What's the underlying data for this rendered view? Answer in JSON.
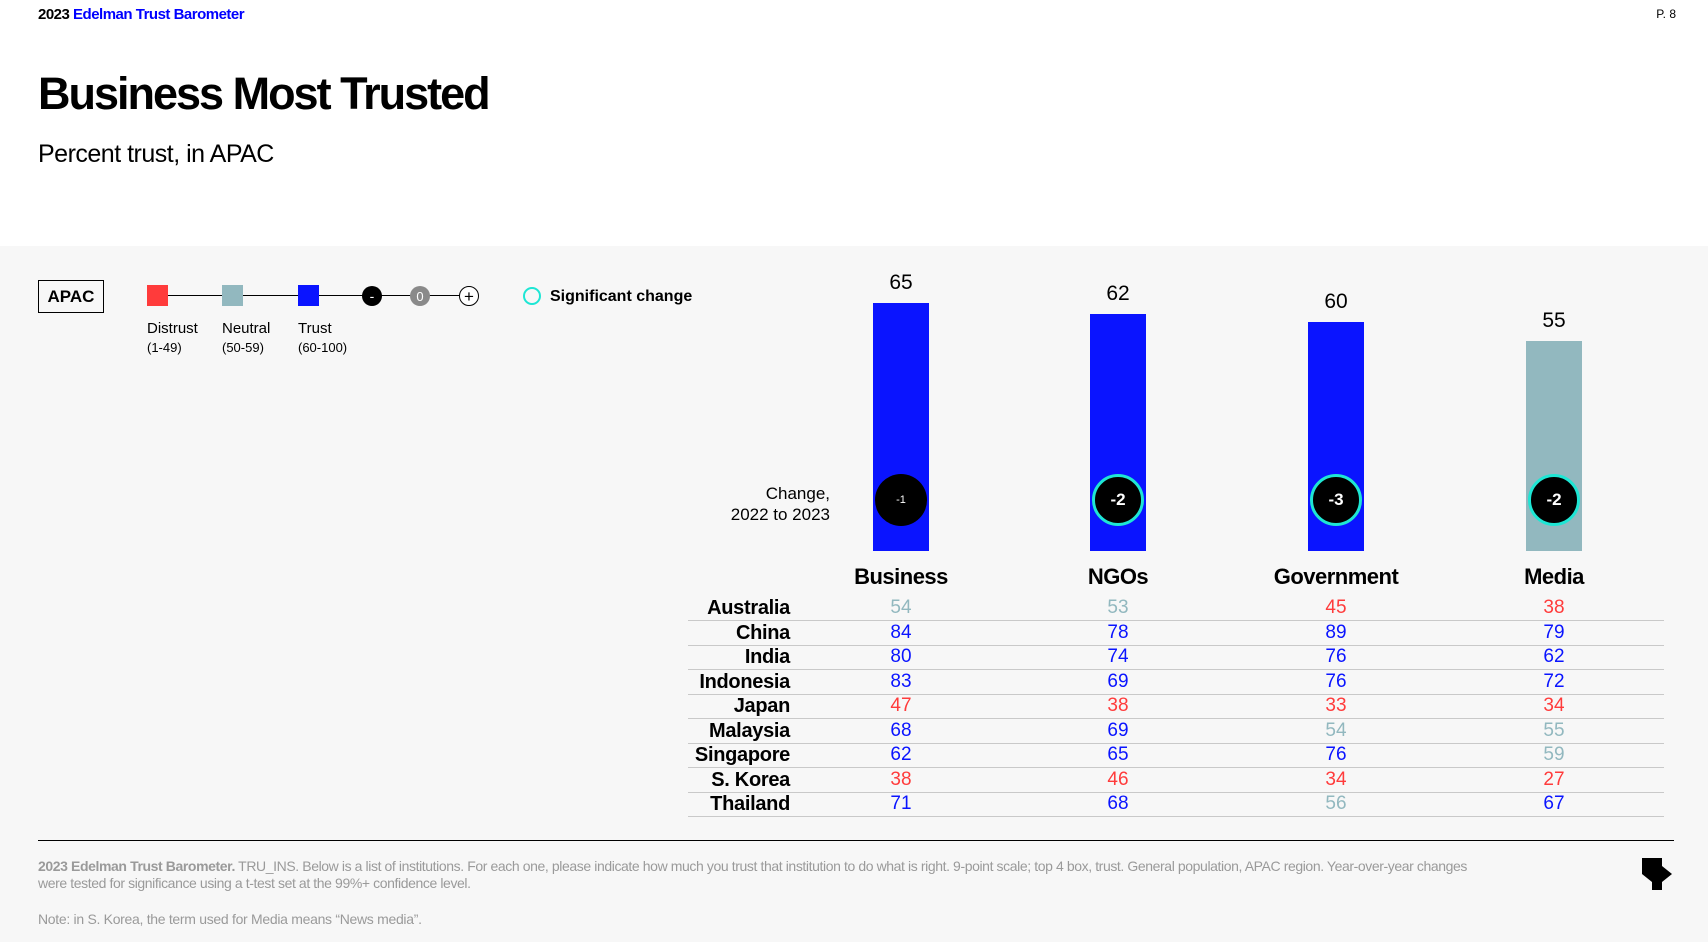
{
  "header": {
    "brand_year": "2023",
    "brand_name": "Edelman Trust Barometer",
    "page_number": "P. 8",
    "title": "Business Most Trusted",
    "subtitle": "Percent trust, in APAC"
  },
  "legend": {
    "region": "APAC",
    "scale": [
      {
        "label": "Distrust",
        "range": "(1-49)",
        "color": "#ff3b3b"
      },
      {
        "label": "Neutral",
        "range": "(50-59)",
        "color": "#92b8bf"
      },
      {
        "label": "Trust",
        "range": "(60-100)",
        "color": "#0a14ff"
      }
    ],
    "change_scale": [
      "-",
      "0",
      "+"
    ],
    "significant_label": "Significant change"
  },
  "change_label_line1": "Change,",
  "change_label_line2": "2022 to 2023",
  "chart_data": {
    "type": "bar",
    "categories": [
      "Business",
      "NGOs",
      "Government",
      "Media"
    ],
    "values": [
      65,
      62,
      60,
      55
    ],
    "changes": [
      "-1",
      "-2",
      "-3",
      "-2"
    ],
    "significant": [
      false,
      true,
      true,
      true
    ],
    "ylim": [
      0,
      100
    ],
    "colors": {
      "distrust": "#ff3b3b",
      "neutral": "#92b8bf",
      "trust": "#0a14ff",
      "significant_ring": "#1ee6d4"
    }
  },
  "table": {
    "countries": [
      "Australia",
      "China",
      "India",
      "Indonesia",
      "Japan",
      "Malaysia",
      "Singapore",
      "S. Korea",
      "Thailand"
    ],
    "values": [
      [
        54,
        53,
        45,
        38
      ],
      [
        84,
        78,
        89,
        79
      ],
      [
        80,
        74,
        76,
        62
      ],
      [
        83,
        69,
        76,
        72
      ],
      [
        47,
        38,
        33,
        34
      ],
      [
        68,
        69,
        54,
        55
      ],
      [
        62,
        65,
        76,
        59
      ],
      [
        38,
        46,
        34,
        27
      ],
      [
        71,
        68,
        56,
        67
      ]
    ]
  },
  "footer": {
    "source_bold": "2023 Edelman Trust Barometer.",
    "source_text": " TRU_INS. Below is a list of institutions. For each one, please indicate how much you trust that institution to do what is right. 9-point scale; top 4 box, trust. General population, APAC region. Year-over-year changes were tested for significance using a t-test set at the 99%+ confidence level.",
    "note": "Note: in S. Korea, the term used for Media means “News media”."
  }
}
